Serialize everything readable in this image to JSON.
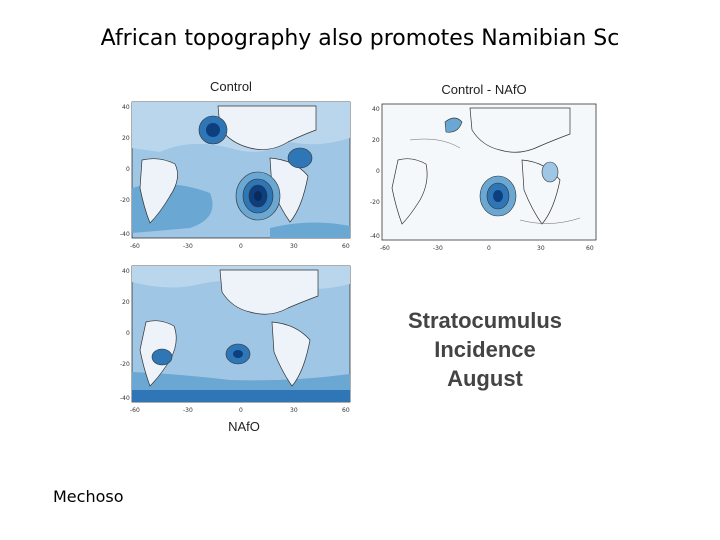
{
  "slide": {
    "title": "African topography also promotes Namibian Sc",
    "credit": "Mechoso"
  },
  "panels": {
    "control": {
      "title": "Control"
    },
    "difference": {
      "title": "Control - NAfO"
    },
    "nafo": {
      "title": "NAfO"
    }
  },
  "axes": {
    "lat_labels": [
      "40",
      "20",
      "0",
      "-20",
      "-40"
    ],
    "lon_labels": [
      "-60",
      "-30",
      "0",
      "30",
      "60"
    ]
  },
  "legend_block": {
    "line1": "Stratocumulus",
    "line2": "Incidence",
    "line3": "August"
  },
  "colors": {
    "ocean_light": "#9fc6e4",
    "ocean_mid": "#6aa7d3",
    "ocean_dark": "#2f76b6",
    "core": "#0d3f7e",
    "land": "#edf3f8"
  }
}
